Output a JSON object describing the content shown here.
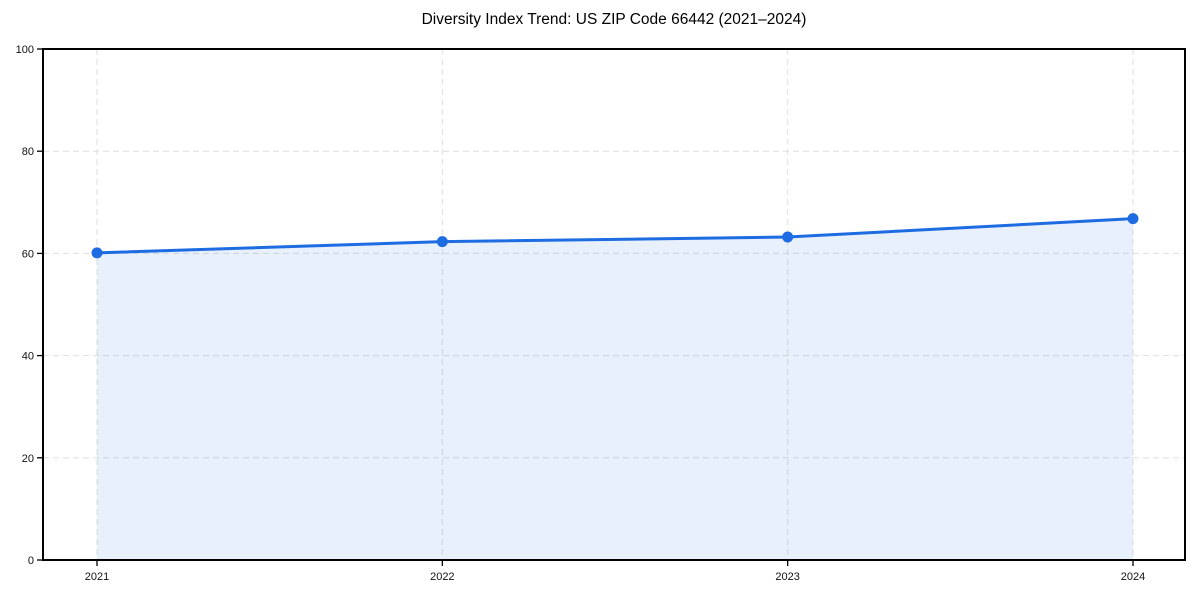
{
  "chart_data": {
    "type": "area",
    "title": "Diversity Index Trend: US ZIP Code 66442 (2021–2024)",
    "categories": [
      "2021",
      "2022",
      "2023",
      "2024"
    ],
    "series": [
      {
        "name": "Diversity Index",
        "values": [
          60.1,
          62.3,
          63.2,
          66.8
        ]
      }
    ],
    "xlabel": "",
    "ylabel": "",
    "ylim": [
      0,
      100
    ],
    "yticks": [
      0,
      20,
      40,
      60,
      80,
      100
    ],
    "grid": true,
    "legend_position": "none",
    "marker": "circle",
    "colors": {
      "line": "#1e6ce2",
      "marker": "#1e6ce2",
      "fill": "#1e6ce2",
      "fill_opacity": 0.1,
      "grid": "#dedede",
      "spine": "#000000",
      "tick_label": "#111111",
      "title": "#000000",
      "background": "#ffffff"
    }
  }
}
